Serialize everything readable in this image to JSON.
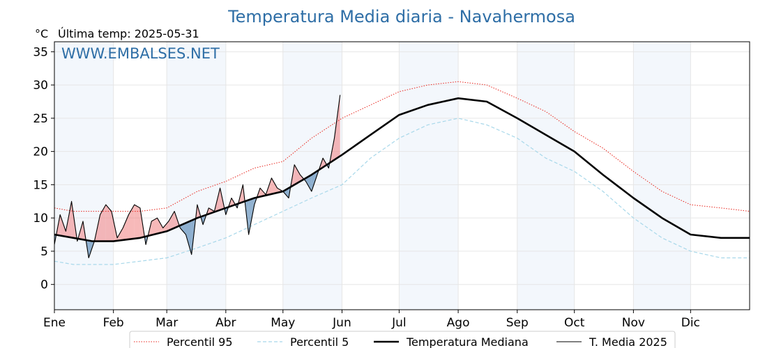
{
  "chart_data": {
    "type": "line",
    "title": "Temperatura Media diaria - Navahermosa",
    "unit_label": "°C",
    "subtitle": "Última temp: 2025-05-31",
    "watermark": "WWW.EMBALSES.NET",
    "xlabel": "",
    "ylabel": "",
    "x_domain": [
      0,
      365
    ],
    "ylim": [
      -3.8,
      36.5
    ],
    "y_ticks": [
      0,
      5,
      10,
      15,
      20,
      25,
      30,
      35
    ],
    "x_ticks": [
      {
        "label": "Ene",
        "day": 0
      },
      {
        "label": "Feb",
        "day": 31
      },
      {
        "label": "Mar",
        "day": 59
      },
      {
        "label": "Abr",
        "day": 90
      },
      {
        "label": "May",
        "day": 120
      },
      {
        "label": "Jun",
        "day": 151
      },
      {
        "label": "Jul",
        "day": 181
      },
      {
        "label": "Ago",
        "day": 212
      },
      {
        "label": "Sep",
        "day": 243
      },
      {
        "label": "Oct",
        "day": 273
      },
      {
        "label": "Nov",
        "day": 304
      },
      {
        "label": "Dic",
        "day": 334
      }
    ],
    "grid": true,
    "shaded_month_bands": [
      "Ene",
      "Mar",
      "May",
      "Jul",
      "Sep",
      "Nov"
    ],
    "legend_position": "bottom-center",
    "fill_above_color": "#f08080",
    "fill_below_color": "#4a7fb0",
    "series": [
      {
        "name": "Percentil 95",
        "style": "dotted",
        "color": "#e8231b",
        "x": [
          0,
          10,
          20,
          31,
          45,
          59,
          75,
          90,
          105,
          120,
          135,
          151,
          166,
          181,
          196,
          212,
          227,
          243,
          258,
          273,
          288,
          304,
          319,
          334,
          350,
          365
        ],
        "y": [
          11.5,
          11.0,
          11.0,
          11.0,
          11.0,
          11.5,
          14.0,
          15.5,
          17.5,
          18.5,
          22.0,
          25.0,
          27.0,
          29.0,
          30.0,
          30.5,
          30.0,
          28.0,
          26.0,
          23.0,
          20.5,
          17.0,
          14.0,
          12.0,
          11.5,
          11.0
        ]
      },
      {
        "name": "Percentil 5",
        "style": "dashed",
        "color": "#a8d8ea",
        "x": [
          0,
          10,
          20,
          31,
          45,
          59,
          75,
          90,
          105,
          120,
          135,
          151,
          166,
          181,
          196,
          212,
          227,
          243,
          258,
          273,
          288,
          304,
          319,
          334,
          350,
          365
        ],
        "y": [
          3.5,
          3.0,
          3.0,
          3.0,
          3.5,
          4.0,
          5.5,
          7.0,
          9.0,
          11.0,
          13.0,
          15.0,
          19.0,
          22.0,
          24.0,
          25.0,
          24.0,
          22.0,
          19.0,
          17.0,
          14.0,
          10.0,
          7.0,
          5.0,
          4.0,
          4.0
        ]
      },
      {
        "name": "Temperatura Mediana",
        "style": "solid-thick",
        "color": "#000000",
        "x": [
          0,
          10,
          20,
          31,
          45,
          59,
          75,
          90,
          105,
          120,
          135,
          151,
          166,
          181,
          196,
          212,
          227,
          243,
          258,
          273,
          288,
          304,
          319,
          334,
          350,
          365
        ],
        "y": [
          7.5,
          7.0,
          6.5,
          6.5,
          7.0,
          8.0,
          10.0,
          11.5,
          13.0,
          14.0,
          16.5,
          19.5,
          22.5,
          25.5,
          27.0,
          28.0,
          27.5,
          25.0,
          22.5,
          20.0,
          16.5,
          13.0,
          10.0,
          7.5,
          7.0,
          7.0
        ]
      },
      {
        "name": "T. Media 2025",
        "style": "solid-thin",
        "color": "#000000",
        "x": [
          0,
          3,
          6,
          9,
          12,
          15,
          18,
          21,
          24,
          27,
          30,
          33,
          36,
          39,
          42,
          45,
          48,
          51,
          54,
          57,
          60,
          63,
          66,
          69,
          72,
          75,
          78,
          81,
          84,
          87,
          90,
          93,
          96,
          99,
          102,
          105,
          108,
          111,
          114,
          117,
          120,
          123,
          126,
          129,
          132,
          135,
          138,
          141,
          144,
          147,
          150
        ],
        "y": [
          6.0,
          10.5,
          8.0,
          12.5,
          6.5,
          9.5,
          4.0,
          6.5,
          10.5,
          12.0,
          11.0,
          7.0,
          8.5,
          10.5,
          12.0,
          11.5,
          6.0,
          9.5,
          10.0,
          8.5,
          9.5,
          11.0,
          8.5,
          7.5,
          4.5,
          12.0,
          9.0,
          11.5,
          11.0,
          14.5,
          10.5,
          13.0,
          11.5,
          15.0,
          7.5,
          12.0,
          14.5,
          13.5,
          16.0,
          14.5,
          14.0,
          13.0,
          18.0,
          16.5,
          15.5,
          14.0,
          16.5,
          19.0,
          17.5,
          22.0,
          28.5
        ]
      }
    ]
  }
}
